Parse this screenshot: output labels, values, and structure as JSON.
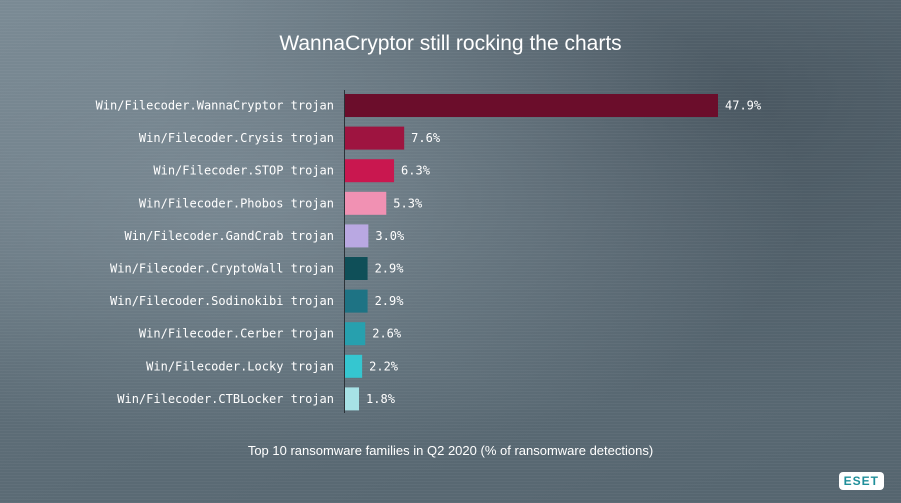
{
  "title": "WannaCryptor still rocking the charts",
  "caption": "Top 10 ransomware families in Q2 2020 (% of ransomware detections)",
  "logo": "ESET",
  "chart_data": {
    "type": "bar",
    "orientation": "horizontal",
    "title": "WannaCryptor still rocking the charts",
    "categories": [
      "Win/Filecoder.WannaCryptor trojan",
      "Win/Filecoder.Crysis trojan",
      "Win/Filecoder.STOP trojan",
      "Win/Filecoder.Phobos trojan",
      "Win/Filecoder.GandCrab trojan",
      "Win/Filecoder.CryptoWall trojan",
      "Win/Filecoder.Sodinokibi trojan",
      "Win/Filecoder.Cerber trojan",
      "Win/Filecoder.Locky trojan",
      "Win/Filecoder.CTBLocker trojan"
    ],
    "values": [
      47.9,
      7.6,
      6.3,
      5.3,
      3.0,
      2.9,
      2.9,
      2.6,
      2.2,
      1.8
    ],
    "value_labels": [
      "47.9%",
      "7.6%",
      "6.3%",
      "5.3%",
      "3.0%",
      "2.9%",
      "2.9%",
      "2.6%",
      "2.2%",
      "1.8%"
    ],
    "colors": [
      "#6b0d2b",
      "#9e1440",
      "#c9174f",
      "#f191b3",
      "#b9a8e2",
      "#0f4f58",
      "#1e7384",
      "#27a0ae",
      "#35c6d0",
      "#a7e2e6"
    ],
    "xlim": [
      0,
      47.9
    ],
    "grid": false,
    "legend": "none"
  }
}
